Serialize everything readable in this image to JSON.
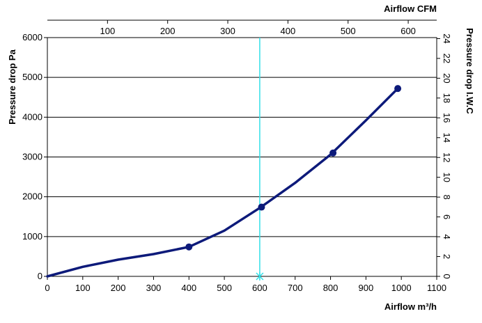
{
  "chart_data": {
    "type": "line",
    "title": "",
    "xlabel": "Airflow m³/h",
    "ylabel": "Pressure drop Pa",
    "x2label": "Airflow CFM",
    "y2label": "Pressure drop I.W.C",
    "xlim": [
      0,
      1100
    ],
    "ylim": [
      0,
      6000
    ],
    "x2lim": [
      0,
      647.4
    ],
    "y2lim": [
      0,
      24.1
    ],
    "x_ticks": [
      0,
      100,
      200,
      300,
      400,
      500,
      600,
      700,
      800,
      900,
      1000,
      1100
    ],
    "y_ticks": [
      0,
      1000,
      2000,
      3000,
      4000,
      5000,
      6000
    ],
    "x2_ticks": [
      100,
      200,
      300,
      400,
      500,
      600
    ],
    "y2_ticks": [
      0,
      2,
      4,
      6,
      8,
      10,
      12,
      14,
      16,
      18,
      20,
      22,
      24
    ],
    "grid": true,
    "series": [
      {
        "line_color": "#0d1a7a",
        "curve": {
          "x": [
            0,
            100,
            200,
            300,
            400,
            500,
            600,
            700,
            800,
            900,
            990
          ],
          "y": [
            0,
            240,
            420,
            560,
            740,
            1150,
            1720,
            2350,
            3060,
            3920,
            4720
          ]
        },
        "markers": {
          "x": [
            400,
            605,
            807,
            990
          ],
          "y": [
            740,
            1740,
            3100,
            4720
          ]
        }
      }
    ],
    "operating_point": {
      "x": 600,
      "line_color": "#33e0e8",
      "marker": "x"
    }
  }
}
